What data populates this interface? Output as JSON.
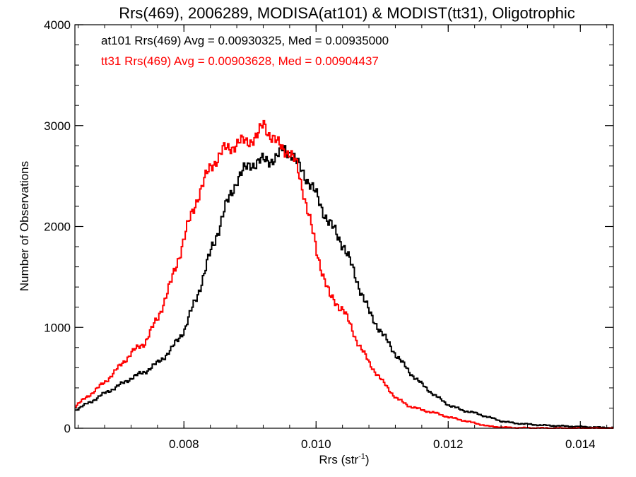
{
  "chart_data": {
    "type": "line",
    "title": "Rrs(469), 2006289, MODISA(at101) & MODIST(tt31), Oligotrophic",
    "xlabel_main": "Rrs (str",
    "xlabel_sup": "-1",
    "xlabel_close": ")",
    "ylabel": "Number of Observations",
    "xlim": [
      0.00635,
      0.0145
    ],
    "ylim": [
      0,
      4000
    ],
    "x_ticks": [
      {
        "value": 0.008,
        "label": "0.008"
      },
      {
        "value": 0.01,
        "label": "0.010"
      },
      {
        "value": 0.012,
        "label": "0.012"
      },
      {
        "value": 0.014,
        "label": "0.014"
      }
    ],
    "y_ticks": [
      {
        "value": 0,
        "label": "0"
      },
      {
        "value": 1000,
        "label": "1000"
      },
      {
        "value": 2000,
        "label": "2000"
      },
      {
        "value": 3000,
        "label": "3000"
      },
      {
        "value": 4000,
        "label": "4000"
      }
    ],
    "grid": false,
    "legend_position": "top-left",
    "series": [
      {
        "legend": "at101 Rrs(469) Avg = 0.00930325, Med = 0.00935000",
        "color": "#000000",
        "x": [
          0.00635,
          0.0066,
          0.0068,
          0.007,
          0.0072,
          0.0074,
          0.0076,
          0.0078,
          0.008,
          0.0082,
          0.0084,
          0.0086,
          0.0088,
          0.009,
          0.0092,
          0.0094,
          0.0095,
          0.0096,
          0.0097,
          0.0098,
          0.01,
          0.0102,
          0.0104,
          0.0106,
          0.0108,
          0.011,
          0.0112,
          0.0114,
          0.0116,
          0.0118,
          0.012,
          0.0122,
          0.0124,
          0.0126,
          0.0128,
          0.013,
          0.0134,
          0.0138,
          0.0142,
          0.0145
        ],
        "y": [
          180,
          270,
          350,
          420,
          500,
          560,
          650,
          780,
          980,
          1330,
          1750,
          2150,
          2480,
          2620,
          2650,
          2680,
          2780,
          2740,
          2620,
          2540,
          2300,
          2020,
          1830,
          1480,
          1140,
          930,
          730,
          560,
          430,
          320,
          230,
          180,
          150,
          110,
          70,
          50,
          30,
          20,
          10,
          5
        ]
      },
      {
        "legend": "tt31 Rrs(469) Avg = 0.00903628, Med = 0.00904437",
        "color": "#ff0000",
        "x": [
          0.00635,
          0.0066,
          0.0068,
          0.007,
          0.0072,
          0.0074,
          0.0076,
          0.0078,
          0.008,
          0.0082,
          0.0084,
          0.0086,
          0.0088,
          0.0089,
          0.009,
          0.0091,
          0.0092,
          0.0093,
          0.0094,
          0.0095,
          0.0096,
          0.0097,
          0.0098,
          0.01,
          0.0102,
          0.0104,
          0.0106,
          0.0108,
          0.011,
          0.0112,
          0.0114,
          0.0116,
          0.0118,
          0.012,
          0.0122,
          0.0124,
          0.0126,
          0.0128,
          0.013,
          0.0134,
          0.0138,
          0.0142,
          0.0145
        ],
        "y": [
          220,
          350,
          460,
          600,
          750,
          850,
          1100,
          1450,
          1900,
          2300,
          2600,
          2760,
          2820,
          2840,
          2860,
          2880,
          3030,
          2900,
          2820,
          2780,
          2720,
          2600,
          2350,
          1750,
          1300,
          1180,
          880,
          640,
          460,
          300,
          220,
          180,
          150,
          110,
          80,
          50,
          20,
          10,
          5,
          2,
          0,
          0,
          0
        ]
      }
    ]
  }
}
